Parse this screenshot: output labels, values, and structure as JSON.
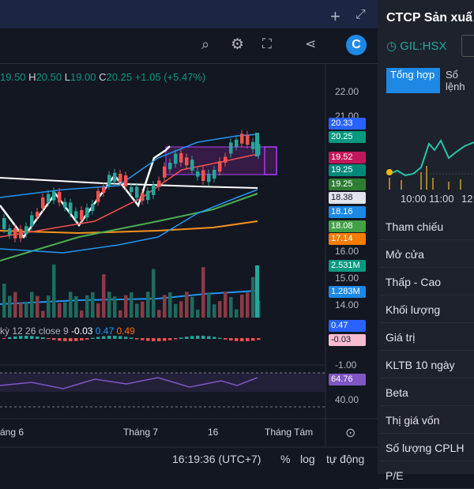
{
  "header": {
    "title": "CTCP Sản xuấ",
    "ticker": "GIL:HSX",
    "tabs": [
      "Tổng hợp",
      "Sổ lệnh"
    ]
  },
  "ohlc": {
    "open": "19.50",
    "h_label": "H",
    "high": "20.50",
    "l_label": "L",
    "low": "19.00",
    "c_label": "C",
    "close": "20.25",
    "change": "+1.05 (+5.47%)"
  },
  "price_axis_labels": [
    "22.00",
    "21.00",
    "16.00",
    "15.00",
    "14.00",
    "-1.00",
    "40.00"
  ],
  "price_tags": [
    {
      "text": "20.33",
      "color": "#2962ff"
    },
    {
      "text": "20.25",
      "color": "#089981"
    },
    {
      "text": "19.52",
      "color": "#c2185b"
    },
    {
      "text": "19.25",
      "color": "#00897b"
    },
    {
      "text": "19.25",
      "color": "#2e7d32"
    },
    {
      "text": "18.38",
      "color": "#e0e3eb"
    },
    {
      "text": "18.16",
      "color": "#1e88e5"
    },
    {
      "text": "18.08",
      "color": "#43a047"
    },
    {
      "text": "17.14",
      "color": "#f57c00"
    },
    {
      "text": "2.531M",
      "color": "#089981"
    },
    {
      "text": "1.283M",
      "color": "#1e88e5"
    },
    {
      "text": "0.47",
      "color": "#2962ff"
    },
    {
      "text": "-0.03",
      "color": "#f8bbd0"
    },
    {
      "text": "64.76",
      "color": "#7e57c2"
    }
  ],
  "macd": {
    "label": "kỳ 12 26 close 9",
    "values": [
      "-0.03",
      "0.47",
      "0.49"
    ]
  },
  "x_axis": [
    "áng 6",
    "Tháng 7",
    "16",
    "Tháng Tám"
  ],
  "footer": {
    "time": "16:19:36 (UTC+7)",
    "percent": "%",
    "log": "log",
    "auto": "tự động"
  },
  "intraday_times": [
    "10:00",
    "11:00",
    "12"
  ],
  "info_rows": [
    "Tham chiếu",
    "Mở cửa",
    "Thấp - Cao",
    "Khối lượng",
    "Giá trị",
    "KLTB 10 ngày",
    "Beta",
    "Thị giá vốn",
    "Số lượng CPLH",
    "P/E"
  ]
}
